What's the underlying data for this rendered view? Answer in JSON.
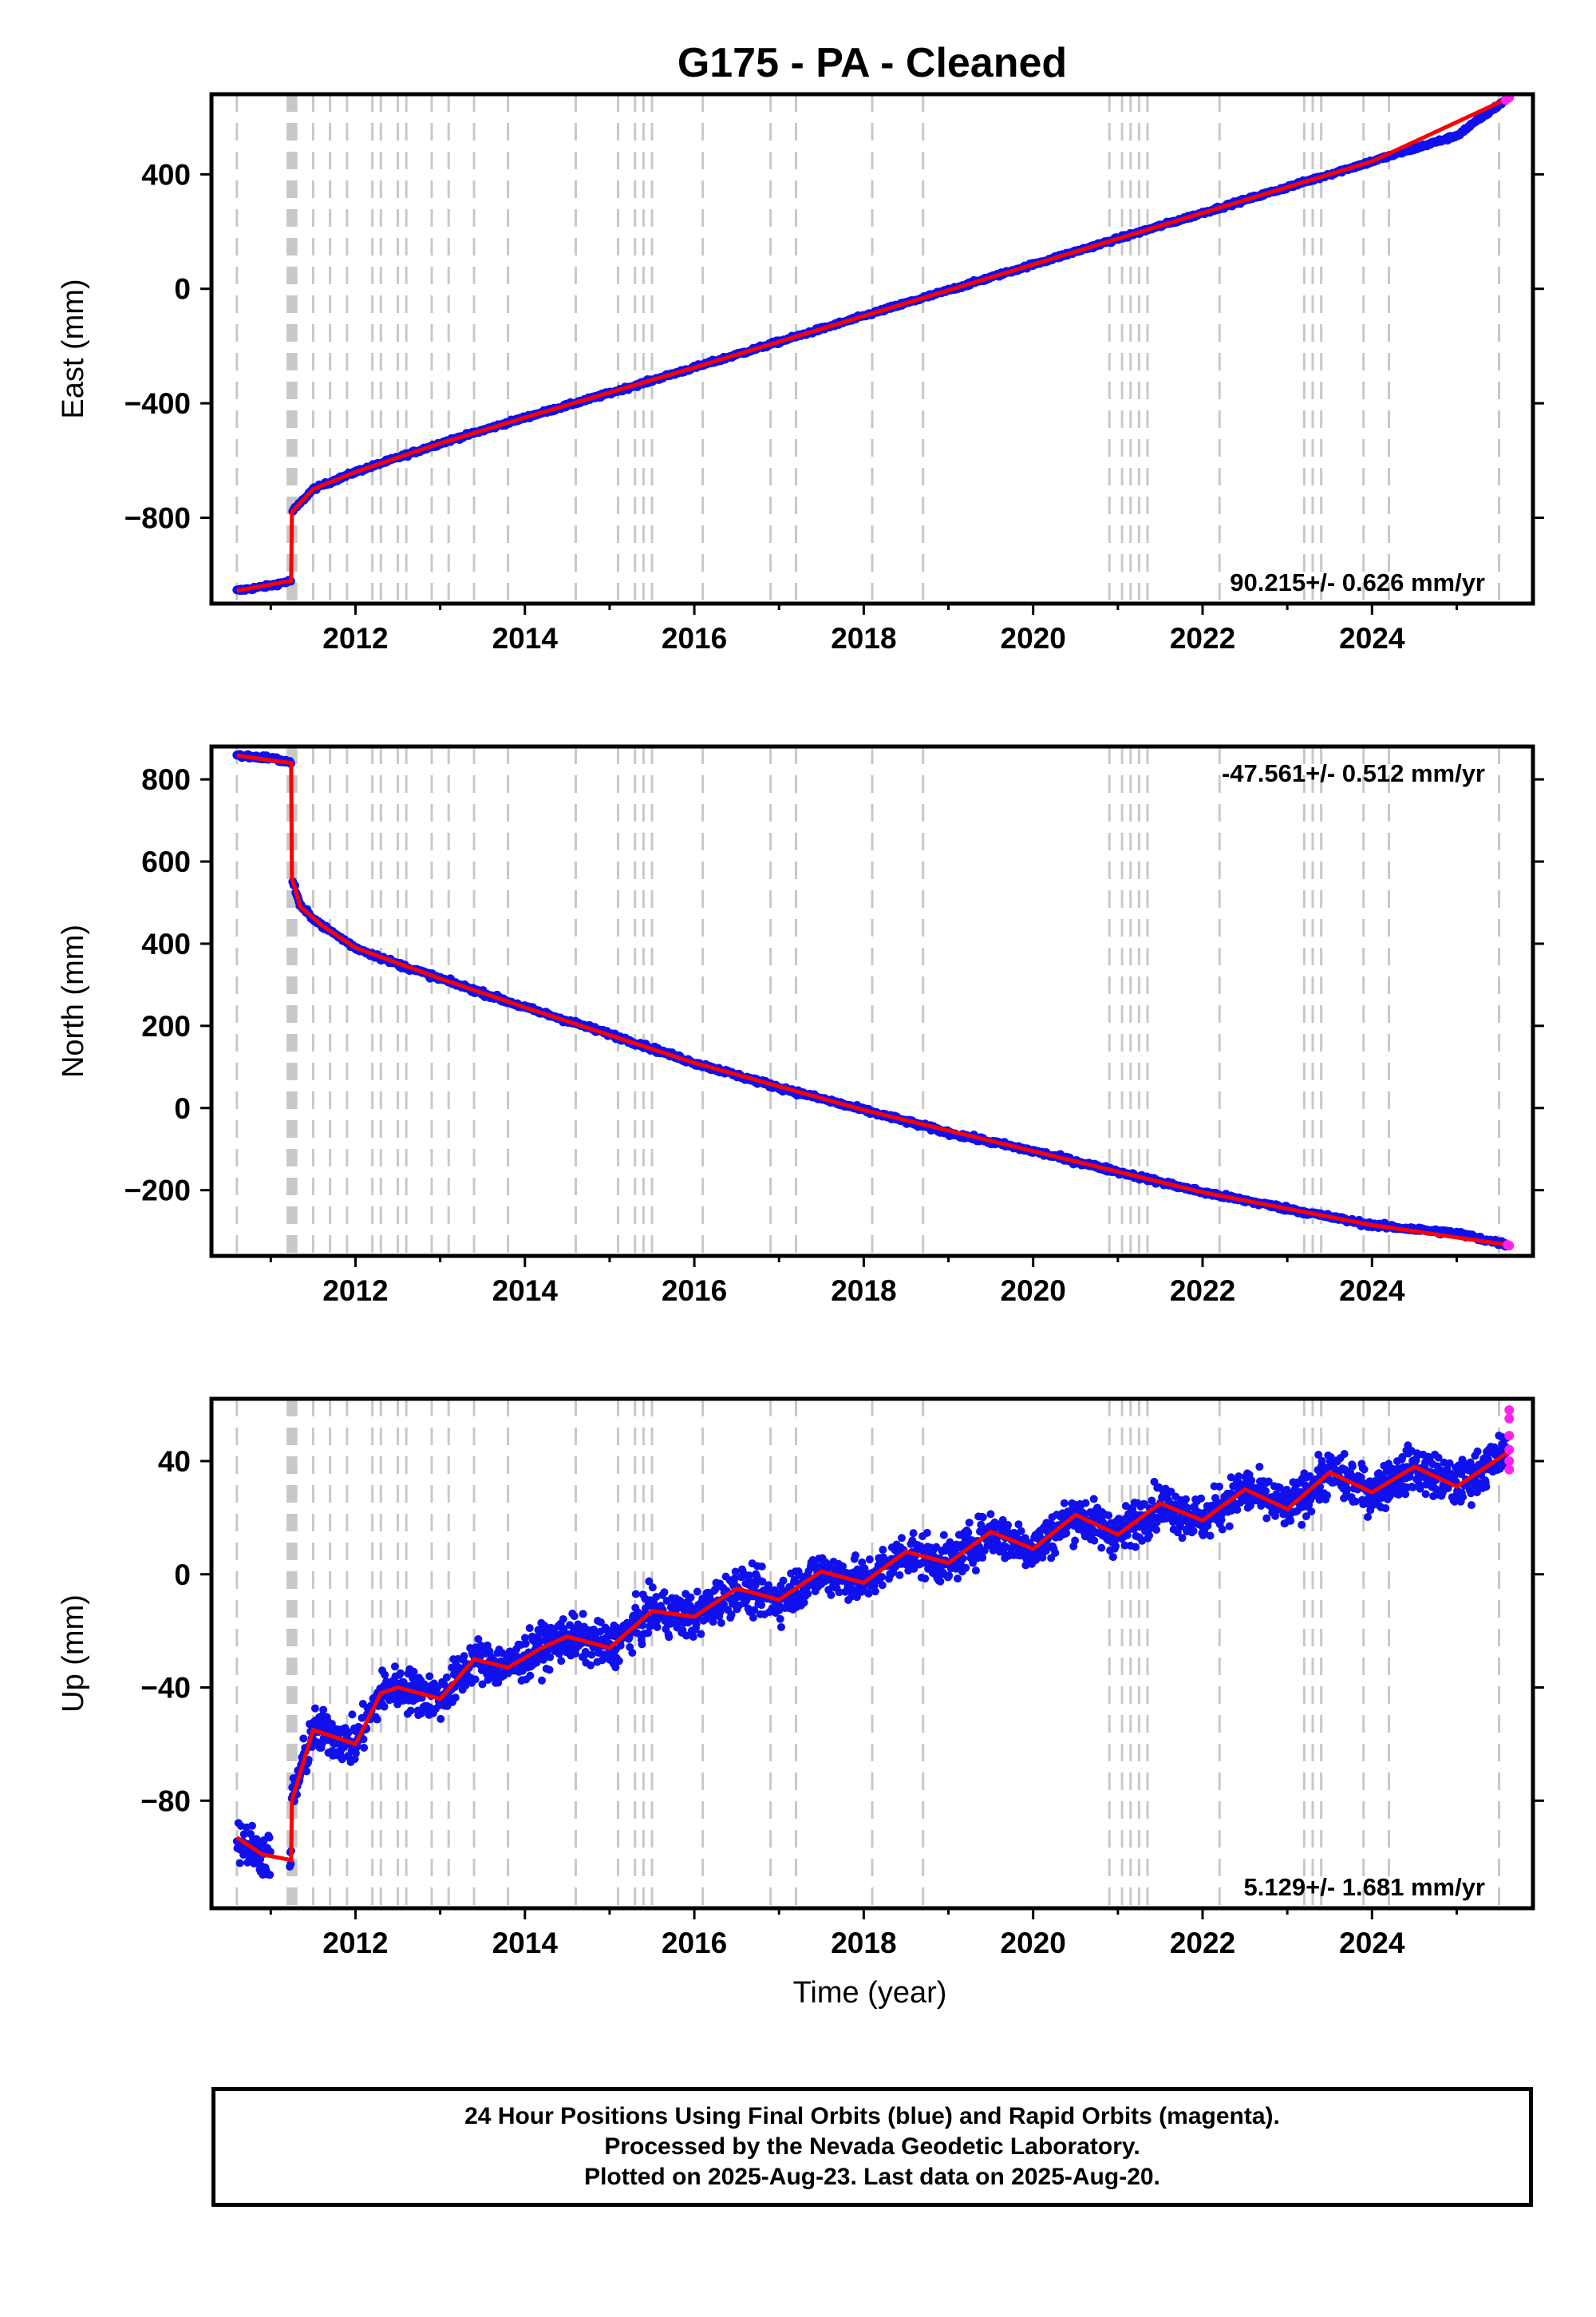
{
  "title": "G175  - PA - Cleaned",
  "footer": {
    "line1": "24 Hour Positions Using Final Orbits (blue) and Rapid Orbits (magenta).",
    "line2": "Processed by the Nevada Geodetic Laboratory.",
    "line3": "Plotted on 2025-Aug-23. Last data on 2025-Aug-20."
  },
  "colors": {
    "final_orbits": "#1010ee",
    "rapid_orbits": "#ff22ee",
    "model_fit": "#ff0000",
    "event_lines": "#c8c8c8"
  },
  "chart_data": [
    {
      "type": "scatter",
      "component": "east",
      "ylabel": "East (mm)",
      "xlabel": "",
      "xlim": [
        2010.3,
        2025.9
      ],
      "ylim": [
        -1100,
        680
      ],
      "x_ticks": [
        "2012",
        "2014",
        "2016",
        "2018",
        "2020",
        "2022",
        "2024"
      ],
      "y_ticks": [
        "400",
        "0",
        "−400",
        "−800"
      ],
      "y_tick_values": [
        400,
        0,
        -400,
        -800
      ],
      "rate_label": "90.215+/- 0.626 mm/yr",
      "rate_label_position": "bottom-right",
      "grid": false,
      "series": [
        {
          "name": "Final Orbits",
          "marker": "dot",
          "x": [
            2010.6,
            2011.0,
            2011.24,
            2011.25,
            2011.5,
            2012.0,
            2012.5,
            2013.0,
            2014.0,
            2015.0,
            2016.0,
            2017.0,
            2018.0,
            2019.0,
            2020.0,
            2021.0,
            2022.0,
            2023.0,
            2024.0,
            2025.0,
            2025.6
          ],
          "y": [
            -1055,
            -1037,
            -1020,
            -780,
            -700,
            -640,
            -590,
            -540,
            -450,
            -365,
            -275,
            -185,
            -95,
            -5,
            85,
            175,
            265,
            355,
            445,
            535,
            665
          ]
        },
        {
          "name": "Rapid Orbits",
          "marker": "dot",
          "x": [
            2025.58,
            2025.6,
            2025.62
          ],
          "y": [
            660,
            665,
            668
          ]
        }
      ],
      "model_fit": {
        "x": [
          2010.6,
          2011.24,
          2011.25,
          2011.5,
          2012.0,
          2013.0,
          2014.0,
          2016.0,
          2018.0,
          2020.0,
          2022.0,
          2024.0,
          2025.6
        ],
        "y": [
          -1055,
          -1020,
          -780,
          -700,
          -640,
          -540,
          -450,
          -275,
          -95,
          85,
          265,
          445,
          665
        ]
      }
    },
    {
      "type": "scatter",
      "component": "north",
      "ylabel": "North (mm)",
      "xlabel": "",
      "xlim": [
        2010.3,
        2025.9
      ],
      "ylim": [
        -360,
        880
      ],
      "x_ticks": [
        "2012",
        "2014",
        "2016",
        "2018",
        "2020",
        "2022",
        "2024"
      ],
      "y_ticks": [
        "800",
        "600",
        "400",
        "200",
        "0",
        "−200"
      ],
      "y_tick_values": [
        800,
        600,
        400,
        200,
        0,
        -200
      ],
      "rate_label": "-47.561+/- 0.512 mm/yr",
      "rate_label_position": "top-right",
      "grid": false,
      "series": [
        {
          "name": "Final Orbits",
          "marker": "dot",
          "x": [
            2010.6,
            2011.0,
            2011.24,
            2011.25,
            2011.35,
            2011.6,
            2012.0,
            2012.5,
            2013.0,
            2014.0,
            2015.0,
            2016.0,
            2017.0,
            2018.0,
            2019.0,
            2020.0,
            2021.0,
            2022.0,
            2023.0,
            2024.0,
            2025.0,
            2025.6
          ],
          "y": [
            858,
            852,
            840,
            560,
            490,
            445,
            390,
            350,
            315,
            245,
            180,
            110,
            50,
            -5,
            -60,
            -105,
            -155,
            -205,
            -245,
            -285,
            -305,
            -333
          ]
        },
        {
          "name": "Rapid Orbits",
          "marker": "dot",
          "x": [
            2025.6,
            2025.62
          ],
          "y": [
            -333,
            -335
          ]
        }
      ],
      "model_fit": {
        "x": [
          2010.6,
          2011.24,
          2011.25,
          2011.35,
          2011.6,
          2012.0,
          2013.0,
          2014.0,
          2016.0,
          2018.0,
          2020.0,
          2022.0,
          2024.0,
          2025.6
        ],
        "y": [
          858,
          840,
          560,
          490,
          445,
          390,
          315,
          245,
          110,
          -5,
          -105,
          -205,
          -285,
          -333
        ]
      }
    },
    {
      "type": "scatter",
      "component": "up",
      "ylabel": "Up (mm)",
      "xlabel": "Time (year)",
      "xlim": [
        2010.3,
        2025.9
      ],
      "ylim": [
        -118,
        62
      ],
      "x_ticks": [
        "2012",
        "2014",
        "2016",
        "2018",
        "2020",
        "2022",
        "2024"
      ],
      "y_ticks": [
        "40",
        "0",
        "−40",
        "−80"
      ],
      "y_tick_values": [
        40,
        0,
        -40,
        -80
      ],
      "rate_label": "5.129+/- 1.681 mm/yr",
      "rate_label_position": "bottom-right",
      "grid": false,
      "series": [
        {
          "name": "Final Orbits",
          "marker": "dot",
          "note_scatter_mm": 6
        },
        {
          "name": "Rapid Orbits",
          "marker": "dot",
          "x": [
            2025.62,
            2025.62,
            2025.62,
            2025.62,
            2025.62,
            2025.62
          ],
          "y": [
            58,
            55,
            49,
            44,
            40,
            37
          ]
        }
      ],
      "model_fit": {
        "x": [
          2010.6,
          2010.9,
          2011.24,
          2011.25,
          2011.5,
          2012.0,
          2012.3,
          2012.5,
          2013.0,
          2013.4,
          2013.8,
          2014.2,
          2014.5,
          2015.0,
          2015.5,
          2016.0,
          2016.5,
          2017.0,
          2017.5,
          2018.0,
          2018.5,
          2019.0,
          2019.5,
          2020.0,
          2020.5,
          2021.0,
          2021.5,
          2022.0,
          2022.5,
          2023.0,
          2023.5,
          2024.0,
          2024.5,
          2025.0,
          2025.6
        ],
        "y": [
          -93,
          -99,
          -101,
          -80,
          -55,
          -60,
          -42,
          -40,
          -44,
          -30,
          -33,
          -26,
          -22,
          -26,
          -13,
          -15,
          -5,
          -9,
          1,
          -3,
          8,
          4,
          15,
          9,
          21,
          14,
          25,
          19,
          30,
          23,
          36,
          29,
          38,
          31,
          43
        ]
      }
    }
  ],
  "event_lines_x": [
    2010.6,
    2011.2,
    2011.22,
    2011.24,
    2011.26,
    2011.28,
    2011.3,
    2011.5,
    2011.7,
    2011.9,
    2012.2,
    2012.3,
    2012.5,
    2012.6,
    2012.9,
    2013.1,
    2013.4,
    2013.8,
    2014.6,
    2015.1,
    2015.3,
    2015.4,
    2015.5,
    2016.1,
    2016.9,
    2017.2,
    2018.1,
    2018.7,
    2020.9,
    2021.05,
    2021.15,
    2021.25,
    2021.35,
    2022.2,
    2023.2,
    2023.3,
    2023.4,
    2023.9,
    2024.2,
    2025.5
  ]
}
